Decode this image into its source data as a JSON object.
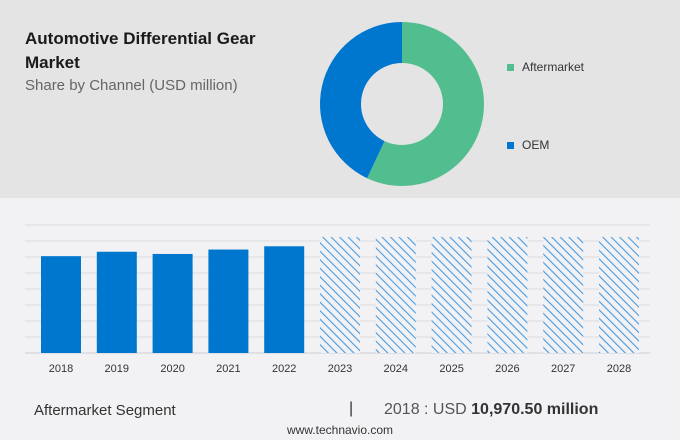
{
  "title": "Automotive Differential Gear Market",
  "subtitle": "Share by Channel (USD million)",
  "colors": {
    "aftermarket": "#52be8f",
    "oem": "#0077cf",
    "bar": "#0077cf",
    "forecast_hatch": "#4a9be0"
  },
  "chart_data": [
    {
      "type": "pie",
      "variant": "donut",
      "legend_placement": "right",
      "slices": [
        {
          "name": "Aftermarket",
          "share": 57
        },
        {
          "name": "OEM",
          "share": 43
        }
      ]
    },
    {
      "type": "bar",
      "categories": [
        "2018",
        "2019",
        "2020",
        "2021",
        "2022",
        "2023",
        "2024",
        "2025",
        "2026",
        "2027",
        "2028"
      ],
      "values": [
        10970.5,
        11470,
        11220,
        11720,
        12090,
        null,
        null,
        null,
        null,
        null,
        null
      ],
      "forecast_categories": [
        "2023",
        "2024",
        "2025",
        "2026",
        "2027",
        "2028"
      ],
      "forecast_style": "hatched, equal height (values not shown)",
      "ylim": [
        0,
        14500
      ],
      "grid": true,
      "y_tick_labels": false
    }
  ],
  "footer": {
    "segment": "Aftermarket Segment",
    "separator": "|",
    "year_prefix": "2018 : USD ",
    "value": "10,970.50 million",
    "site": "www.technavio.com"
  }
}
